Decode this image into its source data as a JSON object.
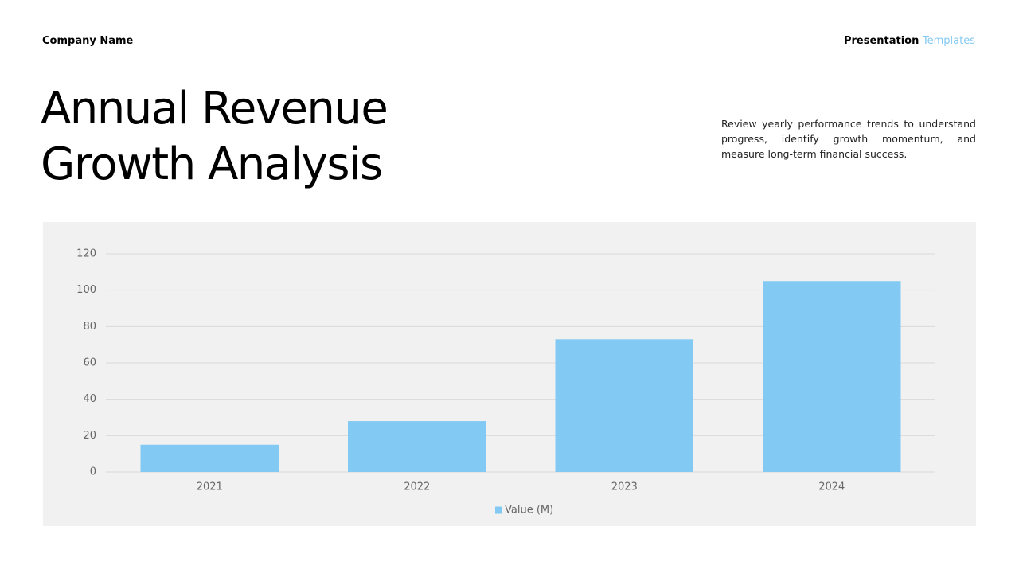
{
  "header": {
    "company": "Company Name",
    "brand": "Presentation",
    "brand_accent": "Templates"
  },
  "title": "Annual Revenue Growth Analysis",
  "description": "Review yearly performance trends to understand progress, identify growth momentum, and measure long-term financial success.",
  "chart_data": {
    "type": "bar",
    "categories": [
      "2021",
      "2022",
      "2023",
      "2024"
    ],
    "series": [
      {
        "name": "Value (M)",
        "color": "#82c9f3",
        "values": [
          15,
          28,
          73,
          105
        ]
      }
    ],
    "ylim": [
      0,
      120
    ],
    "yticks": [
      0,
      20,
      40,
      60,
      80,
      100,
      120
    ],
    "grid": true,
    "legend": "bottom"
  }
}
